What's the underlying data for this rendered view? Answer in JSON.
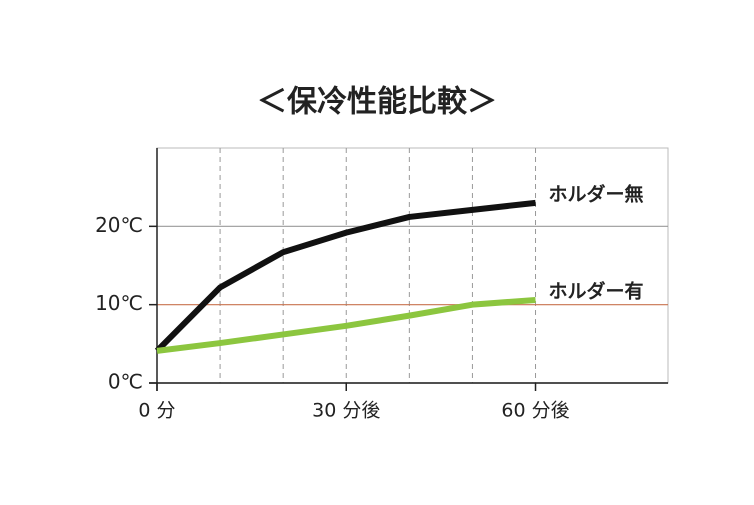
{
  "chart_data": {
    "type": "line",
    "title": "＜保冷性能比較＞",
    "x": [
      0,
      10,
      20,
      30,
      40,
      50,
      60
    ],
    "xlim": [
      0,
      81
    ],
    "ylim": [
      0,
      30
    ],
    "xticks": [
      {
        "value": 0,
        "label": "0 分"
      },
      {
        "value": 30,
        "label": "30 分後"
      },
      {
        "value": 60,
        "label": "60 分後"
      }
    ],
    "xgrid": [
      10,
      20,
      30,
      40,
      50,
      60
    ],
    "yticks": [
      {
        "value": 0,
        "label": "0℃"
      },
      {
        "value": 10,
        "label": "10℃"
      },
      {
        "value": 20,
        "label": "20℃"
      }
    ],
    "ygrid_colors": [
      "#777777",
      "#c8734f",
      "#999999"
    ],
    "series": [
      {
        "name": "ホルダー無",
        "color": "#111111",
        "values": [
          4.1,
          12.2,
          16.7,
          19.2,
          21.2,
          22.1,
          23.0
        ]
      },
      {
        "name": "ホルダー有",
        "color": "#8cc63f",
        "values": [
          4.1,
          5.1,
          6.2,
          7.3,
          8.6,
          10.0,
          10.6
        ]
      }
    ]
  }
}
